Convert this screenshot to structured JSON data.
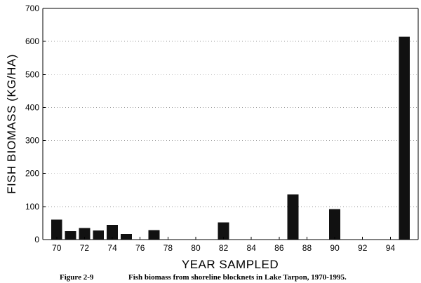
{
  "chart_data": {
    "type": "bar",
    "x_tick_labels": [
      "70",
      "72",
      "74",
      "76",
      "78",
      "80",
      "82",
      "84",
      "86",
      "88",
      "90",
      "92",
      "94"
    ],
    "x_ticks": [
      1970,
      1972,
      1974,
      1976,
      1978,
      1980,
      1982,
      1984,
      1986,
      1988,
      1990,
      1992,
      1994
    ],
    "y_tick_labels": [
      "0",
      "100",
      "200",
      "300",
      "400",
      "500",
      "600",
      "700"
    ],
    "y_ticks": [
      0,
      100,
      200,
      300,
      400,
      500,
      600,
      700
    ],
    "x": [
      1970,
      1971,
      1972,
      1973,
      1974,
      1975,
      1977,
      1982,
      1987,
      1990,
      1995
    ],
    "values": [
      60,
      25,
      35,
      28,
      45,
      17,
      29,
      52,
      137,
      92,
      614
    ],
    "xlabel": "YEAR SAMPLED",
    "ylabel": "FISH BIOMASS (KG/HA)",
    "xlim": [
      1969,
      1996
    ],
    "ylim": [
      0,
      700
    ],
    "grid": "horizontal dotted",
    "bar_color": "#111111"
  },
  "caption": {
    "figure_number": "Figure 2-9",
    "text": "Fish biomass from shoreline blocknets in Lake Tarpon, 1970-1995."
  }
}
